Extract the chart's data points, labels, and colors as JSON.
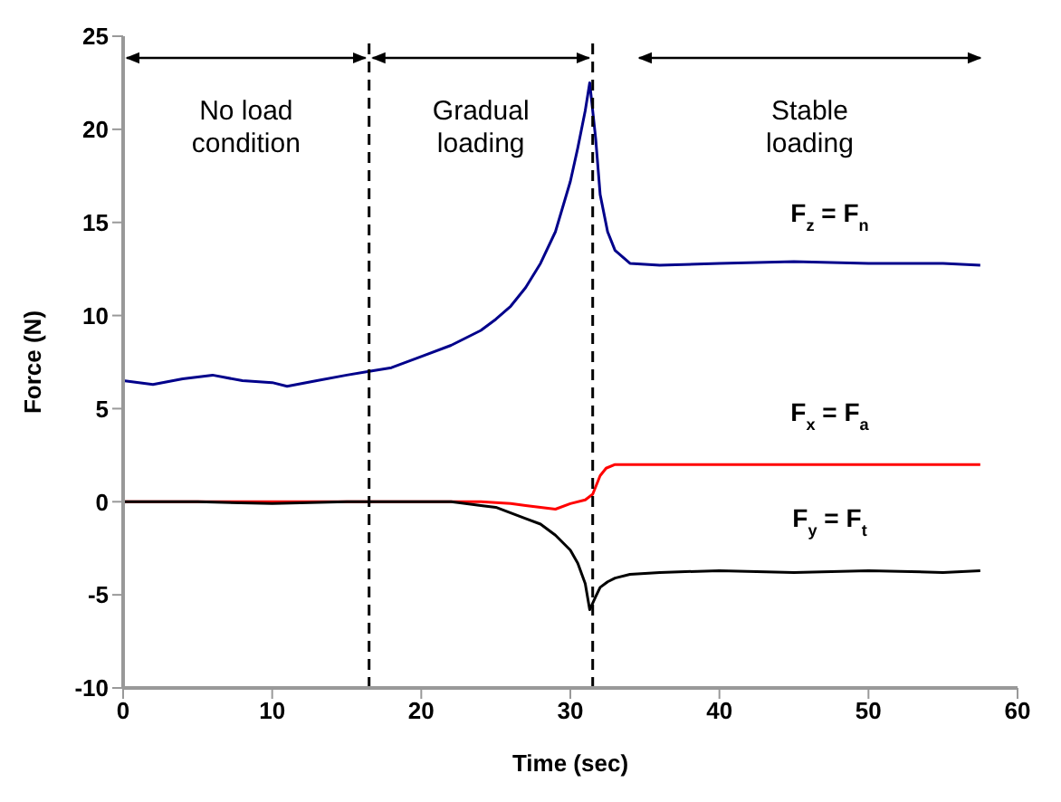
{
  "chart_data": {
    "type": "line",
    "xlabel": "Time (sec)",
    "ylabel": "Force (N)",
    "xlim": [
      0,
      60
    ],
    "ylim": [
      -10,
      25
    ],
    "xticks": [
      0,
      10,
      20,
      30,
      40,
      50,
      60
    ],
    "yticks": [
      -10,
      -5,
      0,
      5,
      10,
      15,
      20,
      25
    ],
    "grid": false,
    "marker": "none",
    "line_style": "solid",
    "series": [
      {
        "name": "F$_{z}$ = F$_{n}$",
        "color": "#00008b",
        "x": [
          0,
          2,
          4,
          6,
          8,
          10,
          11,
          13,
          15,
          16.5,
          18,
          20,
          22,
          24,
          25,
          26,
          27,
          28,
          29,
          30,
          30.5,
          31,
          31.3,
          31.7,
          32,
          32.5,
          33,
          34,
          36,
          40,
          45,
          50,
          55,
          57.5
        ],
        "values": [
          6.5,
          6.3,
          6.6,
          6.8,
          6.5,
          6.4,
          6.2,
          6.5,
          6.8,
          7,
          7.2,
          7.8,
          8.4,
          9.2,
          9.8,
          10.5,
          11.5,
          12.8,
          14.5,
          17.2,
          19,
          21,
          22.5,
          19.5,
          16.5,
          14.5,
          13.5,
          12.8,
          12.7,
          12.8,
          12.9,
          12.8,
          12.8,
          12.7
        ]
      },
      {
        "name": "F$_{x}$ = F$_{a}$",
        "color": "#ff0000",
        "x": [
          0,
          5,
          10,
          15,
          20,
          24,
          26,
          27,
          28,
          29,
          30,
          31,
          31.5,
          32,
          32.4,
          33,
          35,
          40,
          45,
          50,
          57.5
        ],
        "values": [
          0,
          0,
          0,
          0,
          0,
          0,
          -0.1,
          -0.2,
          -0.3,
          -0.4,
          -0.1,
          0.1,
          0.4,
          1.4,
          1.8,
          2,
          2,
          2,
          2,
          2,
          2
        ]
      },
      {
        "name": "F$_{y}$ = F$_{t}$",
        "color": "#000000",
        "x": [
          0,
          5,
          10,
          15,
          20,
          22,
          24,
          25,
          26,
          27,
          28,
          29,
          30,
          30.5,
          31,
          31.3,
          31.7,
          32,
          32.5,
          33,
          34,
          36,
          40,
          45,
          50,
          55,
          57.5
        ],
        "values": [
          0,
          0,
          -0.1,
          0,
          0,
          0,
          -0.2,
          -0.3,
          -0.6,
          -0.9,
          -1.2,
          -1.8,
          -2.6,
          -3.3,
          -4.4,
          -5.8,
          -5.1,
          -4.6,
          -4.3,
          -4.1,
          -3.9,
          -3.8,
          -3.7,
          -3.8,
          -3.7,
          -3.8,
          -3.7
        ]
      }
    ],
    "ref_lines": [
      {
        "axis": "x",
        "value": 16.5,
        "color": "#000000",
        "line_style": "dashed"
      },
      {
        "axis": "x",
        "value": 31.5,
        "color": "#000000",
        "line_style": "dashed"
      }
    ],
    "annotations": [
      "No load condition",
      "Gradual loading",
      "Stable loading"
    ]
  }
}
